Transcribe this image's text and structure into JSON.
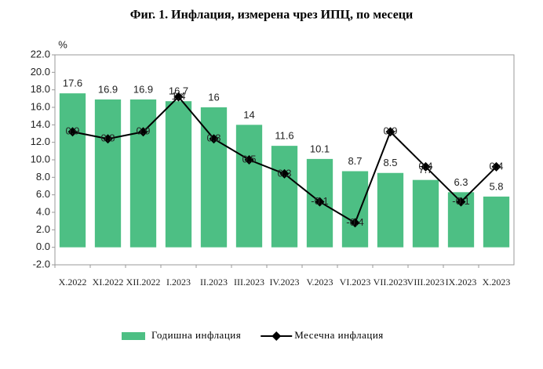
{
  "chart_data": {
    "type": "bar+line",
    "title": "Фиг. 1. Инфлация, измерена чрез ИПЦ, по месеци",
    "y_label": "%",
    "categories": [
      "X.2022",
      "XI.2022",
      "XII.2022",
      "I.2023",
      "II.2023",
      "III.2023",
      "IV.2023",
      "V.2023",
      "VI.2023",
      "VII.2023",
      "VIII.2023",
      "IX.2023",
      "X.2023"
    ],
    "series": [
      {
        "name": "Годишна инфлация",
        "type": "bar",
        "color": "#4dbf84",
        "values": [
          17.6,
          16.9,
          16.9,
          16.7,
          16.0,
          14.0,
          11.6,
          10.1,
          8.7,
          8.5,
          7.7,
          6.3,
          5.8
        ]
      },
      {
        "name": "Месечна инфлация",
        "type": "line",
        "axis": "y2",
        "color": "#000000",
        "values": [
          0.9,
          0.8,
          0.9,
          1.4,
          0.8,
          0.5,
          0.3,
          -0.1,
          -0.4,
          0.9,
          0.4,
          -0.1,
          0.4
        ]
      }
    ],
    "ylim": [
      -2,
      22
    ],
    "yticks": [
      {
        "value": -2,
        "label": "-2.0"
      },
      {
        "value": 0,
        "label": "0.0"
      },
      {
        "value": 2,
        "label": "2.0"
      },
      {
        "value": 4,
        "label": "4.0"
      },
      {
        "value": 6,
        "label": "6.0"
      },
      {
        "value": 8,
        "label": "8.0"
      },
      {
        "value": 10,
        "label": "10.0"
      },
      {
        "value": 12,
        "label": "12.0"
      },
      {
        "value": 14,
        "label": "14.0"
      },
      {
        "value": 16,
        "label": "16.0"
      },
      {
        "value": 18,
        "label": "18.0"
      },
      {
        "value": 20,
        "label": "20.0"
      },
      {
        "value": 22,
        "label": "22.0"
      }
    ],
    "y2lim": [
      -1,
      2
    ],
    "legend": "bottom"
  }
}
